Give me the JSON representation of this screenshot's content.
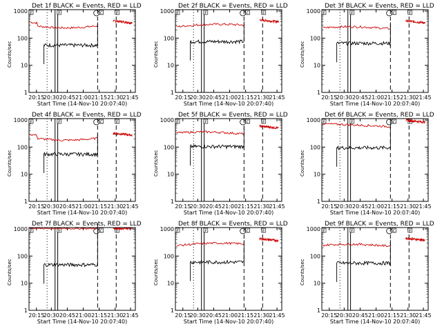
{
  "chart_data": [
    {
      "type": "line",
      "title": "Det 1f BLACK = Events, RED = LLD",
      "xlabel": "Start Time (14-Nov-10 20:07:40)",
      "ylabel": "Counts/sec",
      "x_ticks": [
        "20:15",
        "20:30",
        "20:45",
        "21:00",
        "21:15",
        "21:30",
        "21:45"
      ],
      "y_ticks": [
        "1",
        "10",
        "100",
        "1000"
      ],
      "series": [
        {
          "color": "#cc0000",
          "level": 240,
          "style": "red-dip"
        },
        {
          "color": "#000000",
          "level": 55,
          "style": "black"
        }
      ]
    },
    {
      "type": "line",
      "title": "Det 2f BLACK = Events, RED = LLD",
      "xlabel": "Start Time (14-Nov-10 20:07:40)",
      "ylabel": "Counts/sec",
      "x_ticks": [
        "20:15",
        "20:30",
        "20:45",
        "21:00",
        "21:15",
        "21:30",
        "21:45"
      ],
      "y_ticks": [
        "1",
        "10",
        "100",
        "1000"
      ],
      "series": [
        {
          "color": "#cc0000",
          "level": 260,
          "style": "red-hump"
        },
        {
          "color": "#000000",
          "level": 75,
          "style": "black"
        }
      ]
    },
    {
      "type": "line",
      "title": "Det 3f BLACK = Events, RED = LLD",
      "xlabel": "Start Time (14-Nov-10 20:07:40)",
      "ylabel": "Counts/sec",
      "x_ticks": [
        "20:15",
        "20:30",
        "20:45",
        "21:00",
        "21:15",
        "21:30",
        "21:45"
      ],
      "y_ticks": [
        "1",
        "10",
        "100",
        "1000"
      ],
      "series": [
        {
          "color": "#cc0000",
          "level": 240,
          "style": "red-flat"
        },
        {
          "color": "#000000",
          "level": 65,
          "style": "black"
        }
      ]
    },
    {
      "type": "line",
      "title": "Det 4f BLACK = Events, RED = LLD",
      "xlabel": "Start Time (14-Nov-10 20:07:40)",
      "ylabel": "Counts/sec",
      "x_ticks": [
        "20:15",
        "20:30",
        "20:45",
        "21:00",
        "21:15",
        "21:30",
        "21:45"
      ],
      "y_ticks": [
        "1",
        "10",
        "100",
        "1000"
      ],
      "series": [
        {
          "color": "#cc0000",
          "level": 180,
          "style": "red-dip"
        },
        {
          "color": "#000000",
          "level": 55,
          "style": "black"
        }
      ]
    },
    {
      "type": "line",
      "title": "Det 5f BLACK = Events, RED = LLD",
      "xlabel": "Start Time (14-Nov-10 20:07:40)",
      "ylabel": "Counts/sec",
      "x_ticks": [
        "20:15",
        "20:30",
        "20:45",
        "21:00",
        "21:15",
        "21:30",
        "21:45"
      ],
      "y_ticks": [
        "1",
        "10",
        "100",
        "1000"
      ],
      "series": [
        {
          "color": "#cc0000",
          "level": 330,
          "style": "red-flat"
        },
        {
          "color": "#000000",
          "level": 105,
          "style": "black"
        }
      ]
    },
    {
      "type": "line",
      "title": "Det 6f BLACK = Events, RED = LLD",
      "xlabel": "Start Time (14-Nov-10 20:07:40)",
      "ylabel": "Counts/sec",
      "x_ticks": [
        "20:15",
        "20:30",
        "20:45",
        "21:00",
        "21:15",
        "21:30",
        "21:45"
      ],
      "y_ticks": [
        "1",
        "10",
        "100",
        "1000"
      ],
      "series": [
        {
          "color": "#cc0000",
          "level": 540,
          "style": "red-decline"
        },
        {
          "color": "#000000",
          "level": 95,
          "style": "black"
        }
      ]
    },
    {
      "type": "line",
      "title": "Det 7f BLACK = Events, RED = LLD",
      "xlabel": "Start Time (14-Nov-10 20:07:40)",
      "ylabel": "Counts/sec",
      "x_ticks": [
        "20:15",
        "20:30",
        "20:45",
        "21:00",
        "21:15",
        "21:30",
        "21:45"
      ],
      "y_ticks": [
        "1",
        "10",
        "100",
        "1000"
      ],
      "series": [
        {
          "color": "#cc0000",
          "level": 1000,
          "style": "red-top"
        },
        {
          "color": "#000000",
          "level": 48,
          "style": "black"
        }
      ]
    },
    {
      "type": "line",
      "title": "Det 8f BLACK = Events, RED = LLD",
      "xlabel": "Start Time (14-Nov-10 20:07:40)",
      "ylabel": "Counts/sec",
      "x_ticks": [
        "20:15",
        "20:30",
        "20:45",
        "21:00",
        "21:15",
        "21:30",
        "21:45"
      ],
      "y_ticks": [
        "1",
        "10",
        "100",
        "1000"
      ],
      "series": [
        {
          "color": "#cc0000",
          "level": 240,
          "style": "red-hump"
        },
        {
          "color": "#000000",
          "level": 60,
          "style": "black"
        }
      ]
    },
    {
      "type": "line",
      "title": "Det 9f BLACK = Events, RED = LLD",
      "xlabel": "Start Time (14-Nov-10 20:07:40)",
      "ylabel": "Counts/sec",
      "x_ticks": [
        "20:15",
        "20:30",
        "20:45",
        "21:00",
        "21:15",
        "21:30",
        "21:45"
      ],
      "y_ticks": [
        "1",
        "10",
        "100",
        "1000"
      ],
      "series": [
        {
          "color": "#cc0000",
          "level": 250,
          "style": "red-flat"
        },
        {
          "color": "#000000",
          "level": 55,
          "style": "black"
        }
      ]
    }
  ],
  "markers": {
    "top_labels": [
      "E",
      "F",
      "C",
      "E"
    ],
    "attenuator_symbol": "S"
  }
}
